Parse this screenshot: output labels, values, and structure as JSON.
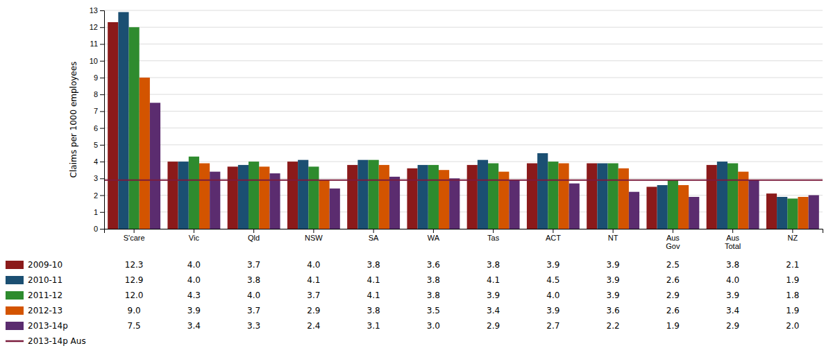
{
  "chart_data": {
    "type": "bar",
    "y_label": "Claims per 1000 employees",
    "categories": [
      "S'care",
      "Vic",
      "Qld",
      "NSW",
      "SA",
      "WA",
      "Tas",
      "ACT",
      "NT",
      "Aus\nGov",
      "Aus\nTotal",
      "NZ"
    ],
    "series": [
      {
        "name": "2009-10",
        "color": "#8B1A1A",
        "values": [
          12.3,
          4.0,
          3.7,
          4.0,
          3.8,
          3.6,
          3.8,
          3.9,
          3.9,
          2.5,
          3.8,
          2.1
        ],
        "value_labels": [
          "12.3",
          "4.0",
          "3.7",
          "4.0",
          "3.8",
          "3.6",
          "3.8",
          "3.9",
          "3.9",
          "2.5",
          "3.8",
          "2.1"
        ]
      },
      {
        "name": "2010-11",
        "color": "#1B4F72",
        "values": [
          12.9,
          4.0,
          3.8,
          4.1,
          4.1,
          3.8,
          4.1,
          4.5,
          3.9,
          2.6,
          4.0,
          1.9
        ],
        "value_labels": [
          "12.9",
          "4.0",
          "3.8",
          "4.1",
          "4.1",
          "3.8",
          "4.1",
          "4.5",
          "3.9",
          "2.6",
          "4.0",
          "1.9"
        ]
      },
      {
        "name": "2011-12",
        "color": "#2E8B2E",
        "values": [
          12.0,
          4.3,
          4.0,
          3.7,
          4.1,
          3.8,
          3.9,
          4.0,
          3.9,
          2.9,
          3.9,
          1.8
        ],
        "value_labels": [
          "12.0",
          "4.3",
          "4.0",
          "3.7",
          "4.1",
          "3.8",
          "3.9",
          "4.0",
          "3.9",
          "2.9",
          "3.9",
          "1.8"
        ]
      },
      {
        "name": "2012-13",
        "color": "#D35400",
        "values": [
          9.0,
          3.9,
          3.7,
          2.9,
          3.8,
          3.5,
          3.4,
          3.9,
          3.6,
          2.6,
          3.4,
          1.9
        ],
        "value_labels": [
          "9.0",
          "3.9",
          "3.7",
          "2.9",
          "3.8",
          "3.5",
          "3.4",
          "3.9",
          "3.6",
          "2.6",
          "3.4",
          "1.9"
        ]
      },
      {
        "name": "2013-14p",
        "color": "#5B2C6F",
        "values": [
          7.5,
          3.4,
          3.3,
          2.4,
          3.1,
          3.0,
          2.9,
          2.7,
          2.2,
          1.9,
          2.9,
          2.0
        ],
        "value_labels": [
          "7.5",
          "3.4",
          "3.3",
          "2.4",
          "3.1",
          "3.0",
          "2.9",
          "2.7",
          "2.2",
          "1.9",
          "2.9",
          "2.0"
        ]
      }
    ],
    "reference_lines": [
      {
        "name": "2013-14p Aus",
        "value": 2.9,
        "color": "#7B1C3C"
      }
    ],
    "ylim": [
      0,
      13
    ],
    "yticks": [
      0,
      1,
      2,
      3,
      4,
      5,
      6,
      7,
      8,
      9,
      10,
      11,
      12,
      13
    ],
    "grid": true,
    "data_labels": true
  }
}
